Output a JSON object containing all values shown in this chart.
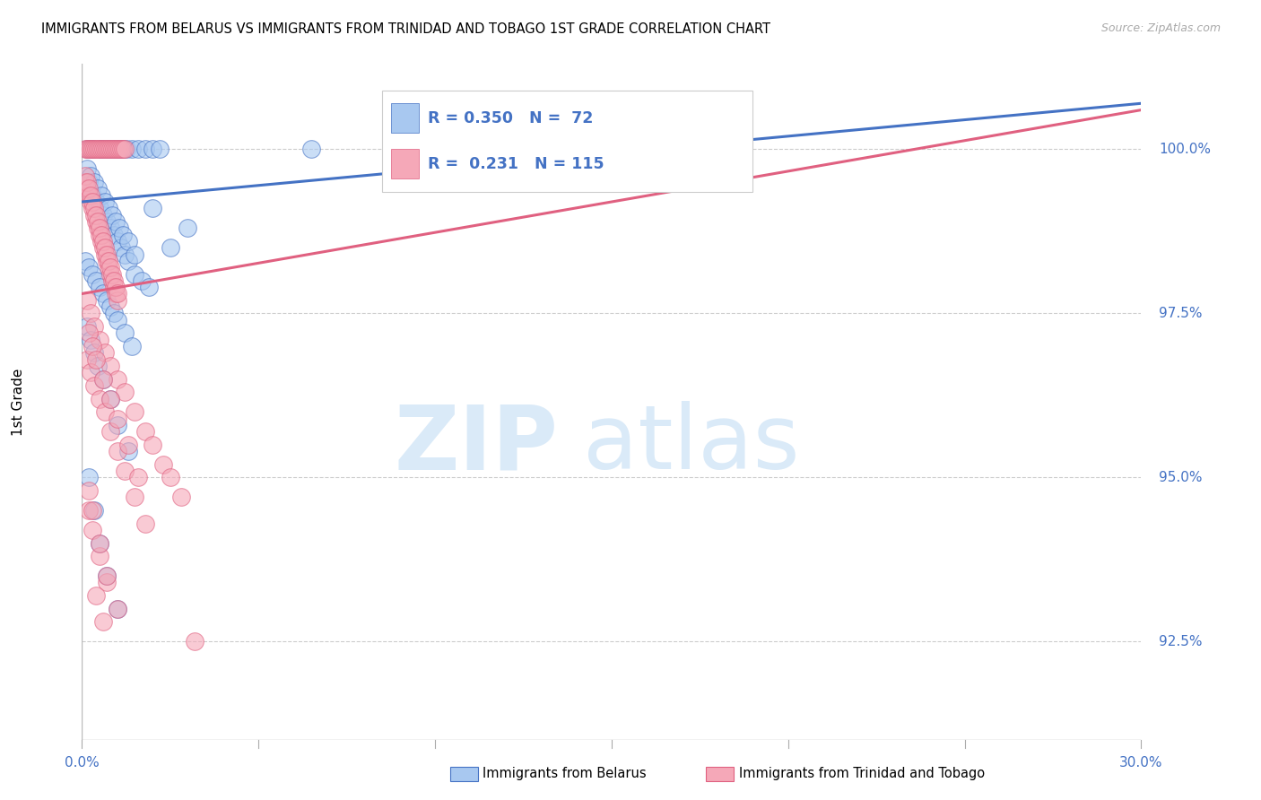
{
  "title": "IMMIGRANTS FROM BELARUS VS IMMIGRANTS FROM TRINIDAD AND TOBAGO 1ST GRADE CORRELATION CHART",
  "source": "Source: ZipAtlas.com",
  "ylabel": "1st Grade",
  "ytick_labels": [
    "92.5%",
    "95.0%",
    "97.5%",
    "100.0%"
  ],
  "ytick_values": [
    92.5,
    95.0,
    97.5,
    100.0
  ],
  "xmin": 0.0,
  "xmax": 30.0,
  "ymin": 91.0,
  "ymax": 101.3,
  "legend_label_blue": "Immigrants from Belarus",
  "legend_label_pink": "Immigrants from Trinidad and Tobago",
  "blue_color": "#a8c8f0",
  "pink_color": "#f5a8b8",
  "blue_line_color": "#4472c4",
  "pink_line_color": "#e06080",
  "watermark_color": "#daeaf8",
  "blue_scatter_x": [
    0.15,
    0.25,
    0.35,
    0.5,
    0.55,
    0.65,
    0.75,
    0.85,
    0.95,
    1.05,
    1.15,
    1.25,
    1.4,
    1.6,
    1.8,
    2.0,
    2.2,
    0.1,
    0.2,
    0.3,
    0.4,
    0.5,
    0.6,
    0.7,
    0.8,
    0.9,
    1.0,
    1.1,
    1.2,
    1.3,
    1.5,
    1.7,
    1.9,
    0.15,
    0.25,
    0.35,
    0.45,
    0.55,
    0.65,
    0.75,
    0.85,
    0.95,
    1.05,
    1.15,
    1.3,
    1.5,
    0.1,
    0.2,
    0.3,
    0.4,
    0.5,
    0.6,
    0.7,
    0.8,
    0.9,
    1.0,
    1.2,
    1.4,
    0.15,
    0.25,
    0.35,
    0.45,
    0.6,
    0.8,
    1.0,
    1.3,
    0.2,
    0.35,
    0.5,
    0.7,
    1.0,
    6.5,
    12.5,
    2.0,
    2.5,
    3.0
  ],
  "blue_scatter_y": [
    100.0,
    100.0,
    100.0,
    100.0,
    100.0,
    100.0,
    100.0,
    100.0,
    100.0,
    100.0,
    100.0,
    100.0,
    100.0,
    100.0,
    100.0,
    100.0,
    100.0,
    99.4,
    99.5,
    99.3,
    99.2,
    99.1,
    99.0,
    98.9,
    98.8,
    98.7,
    98.6,
    98.5,
    98.4,
    98.3,
    98.1,
    98.0,
    97.9,
    99.7,
    99.6,
    99.5,
    99.4,
    99.3,
    99.2,
    99.1,
    99.0,
    98.9,
    98.8,
    98.7,
    98.6,
    98.4,
    98.3,
    98.2,
    98.1,
    98.0,
    97.9,
    97.8,
    97.7,
    97.6,
    97.5,
    97.4,
    97.2,
    97.0,
    97.3,
    97.1,
    96.9,
    96.7,
    96.5,
    96.2,
    95.8,
    95.4,
    95.0,
    94.5,
    94.0,
    93.5,
    93.0,
    100.0,
    100.0,
    99.1,
    98.5,
    98.8
  ],
  "pink_scatter_x": [
    0.1,
    0.15,
    0.2,
    0.25,
    0.3,
    0.35,
    0.4,
    0.45,
    0.5,
    0.55,
    0.6,
    0.65,
    0.7,
    0.75,
    0.8,
    0.85,
    0.9,
    0.95,
    1.0,
    1.05,
    1.1,
    1.15,
    1.2,
    0.1,
    0.15,
    0.2,
    0.25,
    0.3,
    0.35,
    0.4,
    0.45,
    0.5,
    0.55,
    0.6,
    0.65,
    0.7,
    0.75,
    0.8,
    0.85,
    0.9,
    0.95,
    1.0,
    0.1,
    0.15,
    0.2,
    0.25,
    0.3,
    0.35,
    0.4,
    0.45,
    0.5,
    0.55,
    0.6,
    0.65,
    0.7,
    0.75,
    0.8,
    0.85,
    0.9,
    0.95,
    1.0,
    0.15,
    0.25,
    0.35,
    0.5,
    0.65,
    0.8,
    1.0,
    1.2,
    1.5,
    1.8,
    2.0,
    2.3,
    2.5,
    2.8,
    0.15,
    0.25,
    0.35,
    0.5,
    0.65,
    0.8,
    1.0,
    1.2,
    1.5,
    1.8,
    0.2,
    0.3,
    0.4,
    0.6,
    0.8,
    1.0,
    1.3,
    1.6,
    0.2,
    0.3,
    0.5,
    0.7,
    1.0,
    0.2,
    0.3,
    0.5,
    0.7,
    0.4,
    0.6,
    3.2,
    12.0
  ],
  "pink_scatter_y": [
    100.0,
    100.0,
    100.0,
    100.0,
    100.0,
    100.0,
    100.0,
    100.0,
    100.0,
    100.0,
    100.0,
    100.0,
    100.0,
    100.0,
    100.0,
    100.0,
    100.0,
    100.0,
    100.0,
    100.0,
    100.0,
    100.0,
    100.0,
    99.5,
    99.4,
    99.3,
    99.2,
    99.1,
    99.0,
    98.9,
    98.8,
    98.7,
    98.6,
    98.5,
    98.4,
    98.3,
    98.2,
    98.1,
    98.0,
    97.9,
    97.8,
    97.7,
    99.6,
    99.5,
    99.4,
    99.3,
    99.2,
    99.1,
    99.0,
    98.9,
    98.8,
    98.7,
    98.6,
    98.5,
    98.4,
    98.3,
    98.2,
    98.1,
    98.0,
    97.9,
    97.8,
    97.7,
    97.5,
    97.3,
    97.1,
    96.9,
    96.7,
    96.5,
    96.3,
    96.0,
    95.7,
    95.5,
    95.2,
    95.0,
    94.7,
    96.8,
    96.6,
    96.4,
    96.2,
    96.0,
    95.7,
    95.4,
    95.1,
    94.7,
    94.3,
    97.2,
    97.0,
    96.8,
    96.5,
    96.2,
    95.9,
    95.5,
    95.0,
    94.5,
    94.2,
    93.8,
    93.4,
    93.0,
    94.8,
    94.5,
    94.0,
    93.5,
    93.2,
    92.8,
    92.5,
    100.0
  ],
  "blue_trend_x": [
    0.0,
    30.0
  ],
  "blue_trend_y": [
    99.2,
    100.7
  ],
  "pink_trend_x": [
    0.0,
    30.0
  ],
  "pink_trend_y": [
    97.8,
    100.6
  ]
}
